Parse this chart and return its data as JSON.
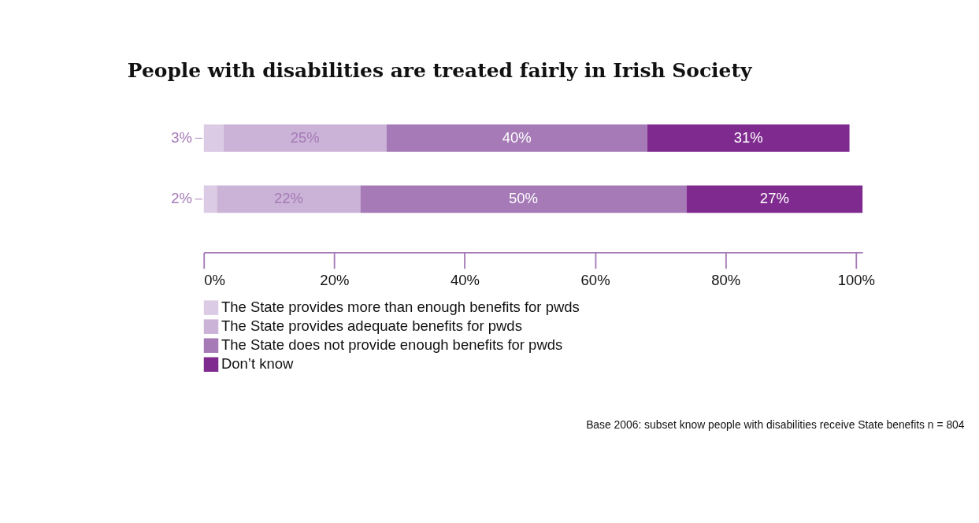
{
  "chart_data": {
    "type": "bar",
    "orientation": "horizontal",
    "stacked": true,
    "title": "People with disabilities are treated fairly in Irish Society",
    "categories": [
      null,
      null
    ],
    "series": [
      {
        "name": "The State provides more than enough benefits for pwds",
        "color": "#dccbe4",
        "values": [
          3,
          2
        ],
        "value_labels": [
          "3%",
          "2%"
        ]
      },
      {
        "name": "The State provides adequate benefits for pwds",
        "color": "#cbb3d7",
        "values": [
          25,
          22
        ],
        "value_labels": [
          "25%",
          "22%"
        ]
      },
      {
        "name": "The State does not provide enough benefits for pwds",
        "color": "#a57ab6",
        "values": [
          40,
          50
        ],
        "value_labels": [
          "40%",
          "50%"
        ]
      },
      {
        "name": "Don’t know",
        "color": "#7f2a8f",
        "values": [
          31,
          27
        ],
        "value_labels": [
          "31%",
          "27%"
        ]
      }
    ],
    "xlim": [
      0,
      101
    ],
    "xticks": [
      {
        "value": 0,
        "label": "0%"
      },
      {
        "value": 20,
        "label": "20%"
      },
      {
        "value": 40,
        "label": "40%"
      },
      {
        "value": 60,
        "label": "60%"
      },
      {
        "value": 80,
        "label": "80%"
      },
      {
        "value": 100,
        "label": "100%"
      }
    ],
    "grid": false,
    "legend": "bottom",
    "annotations": [
      "Base 2006: subset know people with disabilities receive State benefits n = 804"
    ]
  }
}
